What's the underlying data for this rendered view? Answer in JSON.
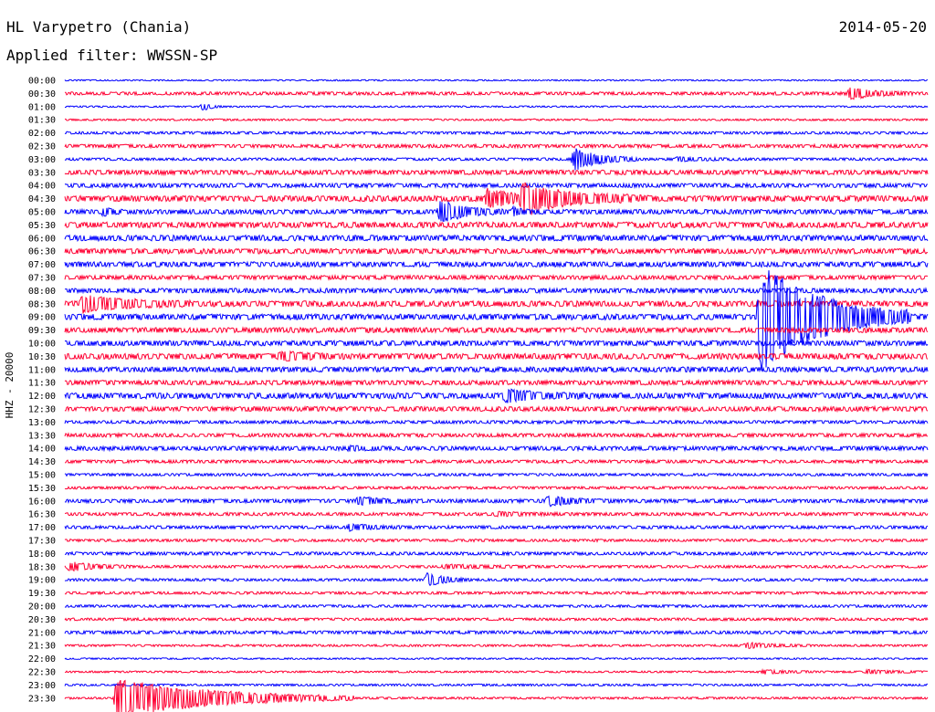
{
  "header": {
    "station": "HL Varypetro (Chania)",
    "date": "2014-05-20",
    "filter_prefix": "Applied filter: ",
    "filter_name": "WWSSN-SP"
  },
  "chart_data": {
    "type": "line",
    "title": "HL Varypetro (Chania)",
    "ylabel": "HHZ - 20000",
    "trace_colors": [
      "#0000ff",
      "#ff0033"
    ],
    "rows": [
      "00:00",
      "00:30",
      "01:00",
      "01:30",
      "02:00",
      "02:30",
      "03:00",
      "03:30",
      "04:00",
      "04:30",
      "05:00",
      "05:30",
      "06:00",
      "06:30",
      "07:00",
      "07:30",
      "08:00",
      "08:30",
      "09:00",
      "09:30",
      "10:00",
      "10:30",
      "11:00",
      "11:30",
      "12:00",
      "12:30",
      "13:00",
      "13:30",
      "14:00",
      "14:30",
      "15:00",
      "15:30",
      "16:00",
      "16:30",
      "17:00",
      "17:30",
      "18:00",
      "18:30",
      "19:00",
      "19:30",
      "20:00",
      "20:30",
      "21:00",
      "21:30",
      "22:00",
      "22:30",
      "23:00",
      "23:30"
    ],
    "noise": [
      0.5,
      1.2,
      0.6,
      0.7,
      1.0,
      1.3,
      1.0,
      1.8,
      1.6,
      2.2,
      1.8,
      2.2,
      2.2,
      2.0,
      2.0,
      1.6,
      1.8,
      2.2,
      2.2,
      2.0,
      2.0,
      2.2,
      2.0,
      1.8,
      2.2,
      1.8,
      1.2,
      1.4,
      1.6,
      1.2,
      1.0,
      1.0,
      1.4,
      1.2,
      1.2,
      1.0,
      1.2,
      1.0,
      1.0,
      1.0,
      1.0,
      1.0,
      1.2,
      0.8,
      0.6,
      0.7,
      0.8,
      0.8
    ],
    "events": [
      {
        "row": 1,
        "x": 0.91,
        "amp": 6,
        "dur": 0.03
      },
      {
        "row": 2,
        "x": 0.16,
        "amp": 4,
        "dur": 0.01
      },
      {
        "row": 6,
        "x": 0.59,
        "amp": 12,
        "dur": 0.03
      },
      {
        "row": 6,
        "x": 0.71,
        "amp": 2,
        "dur": 0.03
      },
      {
        "row": 9,
        "x": 0.49,
        "amp": 9,
        "dur": 0.04
      },
      {
        "row": 9,
        "x": 0.53,
        "amp": 14,
        "dur": 0.06
      },
      {
        "row": 10,
        "x": 0.045,
        "amp": 4,
        "dur": 0.01
      },
      {
        "row": 10,
        "x": 0.435,
        "amp": 12,
        "dur": 0.03
      },
      {
        "row": 10,
        "x": 0.52,
        "amp": 4,
        "dur": 0.01
      },
      {
        "row": 17,
        "x": 0.02,
        "amp": 9,
        "dur": 0.05
      },
      {
        "row": 18,
        "x": 0.805,
        "amp": 60,
        "dur": 0.07
      },
      {
        "row": 21,
        "x": 0.25,
        "amp": 4,
        "dur": 0.03
      },
      {
        "row": 24,
        "x": 0.51,
        "amp": 6,
        "dur": 0.04
      },
      {
        "row": 28,
        "x": 0.33,
        "amp": 2,
        "dur": 0.02
      },
      {
        "row": 32,
        "x": 0.34,
        "amp": 4,
        "dur": 0.03
      },
      {
        "row": 32,
        "x": 0.56,
        "amp": 5,
        "dur": 0.03
      },
      {
        "row": 33,
        "x": 0.5,
        "amp": 2,
        "dur": 0.03
      },
      {
        "row": 34,
        "x": 0.33,
        "amp": 3,
        "dur": 0.03
      },
      {
        "row": 37,
        "x": 0.005,
        "amp": 5,
        "dur": 0.03
      },
      {
        "row": 37,
        "x": 0.44,
        "amp": 2,
        "dur": 0.05
      },
      {
        "row": 38,
        "x": 0.42,
        "amp": 7,
        "dur": 0.02
      },
      {
        "row": 43,
        "x": 0.79,
        "amp": 3,
        "dur": 0.03
      },
      {
        "row": 45,
        "x": 0.81,
        "amp": 2,
        "dur": 0.03
      },
      {
        "row": 45,
        "x": 0.93,
        "amp": 2,
        "dur": 0.03
      },
      {
        "row": 47,
        "x": 0.06,
        "amp": 22,
        "dur": 0.11
      }
    ]
  }
}
